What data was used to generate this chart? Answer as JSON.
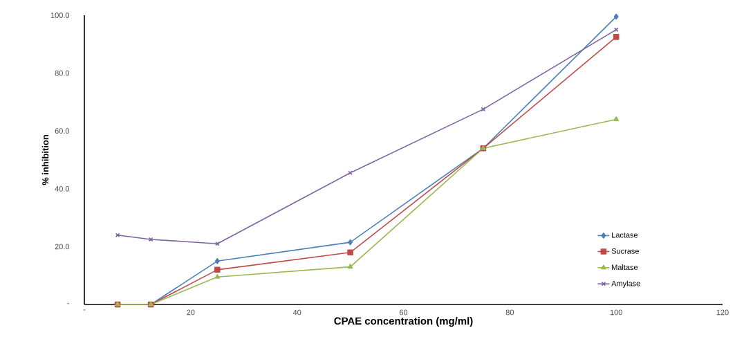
{
  "chart_data": {
    "type": "line",
    "xlabel": "CPAE concentration  (mg/ml)",
    "ylabel": "% inhibition",
    "x": [
      6.25,
      12.5,
      25,
      50,
      75,
      100
    ],
    "series": [
      {
        "name": "Lactase",
        "color": "#4a7ebb",
        "marker": "diamond",
        "values": [
          0,
          0,
          15,
          21.5,
          54,
          99.5
        ]
      },
      {
        "name": "Sucrase",
        "color": "#be4b48",
        "marker": "square",
        "values": [
          0,
          0,
          12,
          18,
          54,
          92.5
        ]
      },
      {
        "name": "Maltase",
        "color": "#98b954",
        "marker": "triangle",
        "values": [
          0,
          0,
          9.5,
          13,
          54,
          64
        ]
      },
      {
        "name": "Amylase",
        "color": "#7d60a0",
        "marker": "cross",
        "values": [
          24,
          22.5,
          21,
          45.5,
          67.5,
          95
        ]
      }
    ],
    "xlim": [
      0,
      120
    ],
    "ylim": [
      0,
      100
    ],
    "xticks": [
      {
        "value": 0,
        "label": "-"
      },
      20,
      40,
      60,
      80,
      100,
      120
    ],
    "yticks": [
      {
        "value": 0,
        "label": "-"
      },
      {
        "value": 20,
        "label": "20.0"
      },
      {
        "value": 40,
        "label": "40.0"
      },
      {
        "value": 60,
        "label": "60.0"
      },
      {
        "value": 80,
        "label": "80.0"
      },
      {
        "value": 100,
        "label": "100.0"
      }
    ],
    "grid": false,
    "legend": "right",
    "line_style": "solid"
  }
}
